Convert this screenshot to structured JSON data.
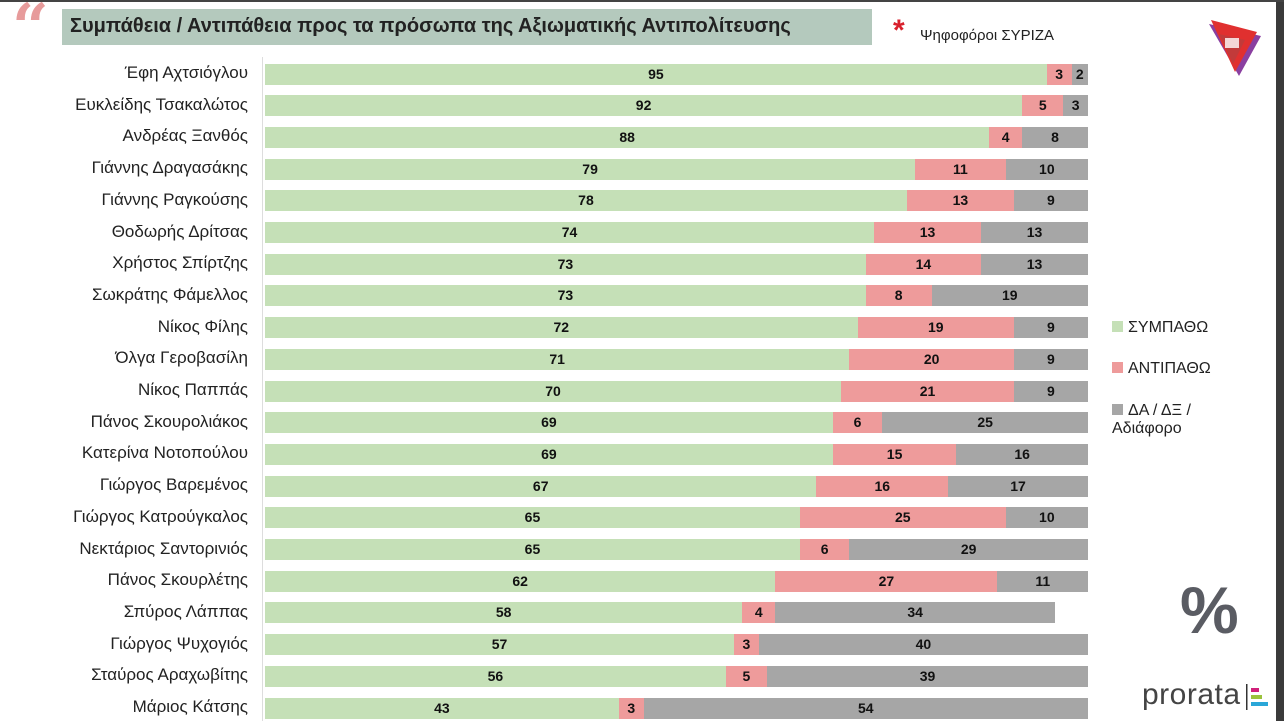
{
  "header": {
    "title": "Συμπάθεια / Αντιπάθεια προς τα πρόσωπα της Αξιωματικής Αντιπολίτευσης",
    "subtitle": "Ψηφοφόροι ΣΥΡΙΖΑ",
    "quote_mark": "“",
    "asterisk": "*"
  },
  "brand": {
    "name": "prorata",
    "percent_sign": "%"
  },
  "chart_data": {
    "type": "bar",
    "stacked": true,
    "orientation": "horizontal",
    "title": "Συμπάθεια / Αντιπάθεια προς τα πρόσωπα της Αξιωματικής Αντιπολίτευσης",
    "xlim": [
      0,
      100
    ],
    "legend_position": "right",
    "categories": [
      "Έφη Αχτσιόγλου",
      "Ευκλείδης Τσακαλώτος",
      "Ανδρέας Ξανθός",
      "Γιάννης Δραγασάκης",
      "Γιάννης Ραγκούσης",
      "Θοδωρής Δρίτσας",
      "Χρήστος Σπίρτζης",
      "Σωκράτης Φάμελλος",
      "Νίκος Φίλης",
      "Όλγα Γεροβασίλη",
      "Νίκος Παππάς",
      "Πάνος Σκουρολιάκος",
      "Κατερίνα Νοτοπούλου",
      "Γιώργος Βαρεμένος",
      "Γιώργος Κατρούγκαλος",
      "Νεκτάριος Σαντορινιός",
      "Πάνος Σκουρλέτης",
      "Σπύρος Λάππας",
      "Γιώργος Ψυχογιός",
      "Σταύρος Αραχωβίτης",
      "Μάριος Κάτσης"
    ],
    "series": [
      {
        "name": "ΣΥΜΠΑΘΩ",
        "color": "#c5e0b7",
        "values": [
          95,
          92,
          88,
          79,
          78,
          74,
          73,
          73,
          72,
          71,
          70,
          69,
          69,
          67,
          65,
          65,
          62,
          58,
          57,
          56,
          43
        ]
      },
      {
        "name": "ΑΝΤΙΠΑΘΩ",
        "color": "#ee9b9b",
        "values": [
          3,
          5,
          4,
          11,
          13,
          13,
          14,
          8,
          19,
          20,
          21,
          6,
          15,
          16,
          25,
          6,
          27,
          4,
          3,
          5,
          3
        ]
      },
      {
        "name": "ΔΑ / ΔΞ / Αδιάφορο",
        "color": "#a6a6a6",
        "values": [
          2,
          3,
          8,
          10,
          9,
          13,
          13,
          19,
          9,
          9,
          9,
          25,
          16,
          17,
          10,
          29,
          11,
          34,
          40,
          39,
          54
        ]
      }
    ]
  }
}
